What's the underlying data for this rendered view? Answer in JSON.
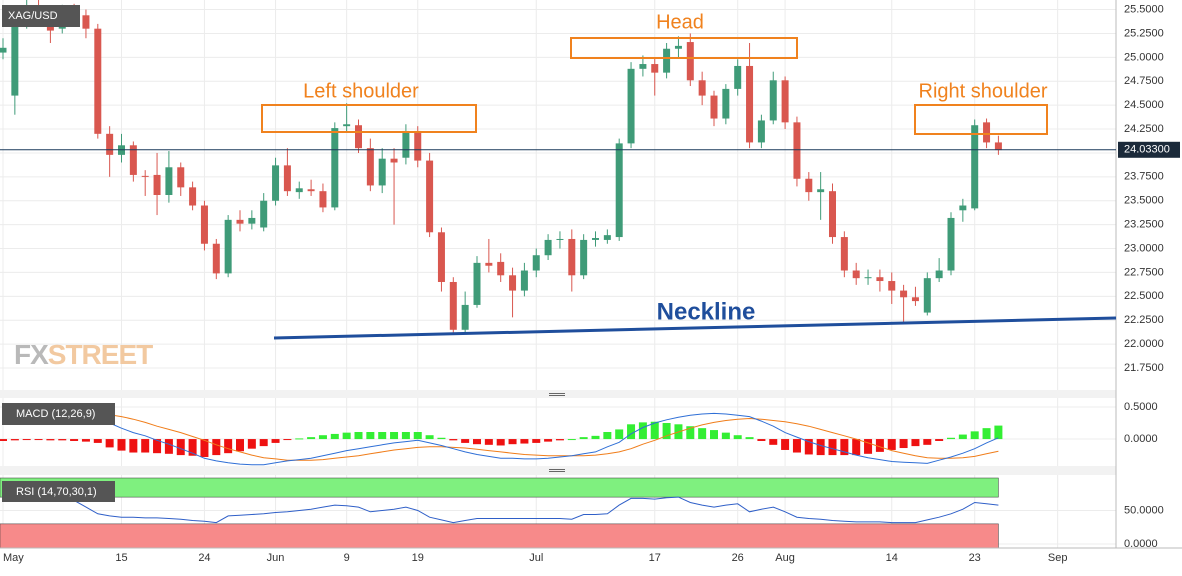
{
  "chart_data": [
    {
      "type": "candlestick",
      "symbol": "XAG/USD",
      "watermark": [
        "FX",
        "STREET"
      ],
      "annotations": [
        "Left shoulder",
        "Head",
        "Right shoulder",
        "Neckline"
      ],
      "categories": [
        "May",
        null,
        null,
        null,
        null,
        null,
        null,
        null,
        null,
        null,
        "15",
        null,
        null,
        null,
        null,
        null,
        null,
        "24",
        null,
        null,
        null,
        null,
        null,
        "Jun",
        null,
        null,
        null,
        null,
        null,
        "9",
        null,
        null,
        null,
        null,
        null,
        "19",
        null,
        null,
        null,
        null,
        null,
        null,
        null,
        null,
        null,
        "Jul",
        null,
        null,
        null,
        null,
        null,
        null,
        null,
        null,
        null,
        "17",
        null,
        null,
        null,
        null,
        null,
        null,
        "26",
        null,
        null,
        null,
        "Aug",
        null,
        null,
        null,
        null,
        null,
        null,
        null,
        null,
        "14",
        null,
        null,
        null,
        null,
        null,
        null,
        "23",
        null,
        null,
        null,
        null,
        null,
        null,
        "Sep"
      ],
      "open": [
        25.05,
        24.6,
        25.38,
        25.48,
        25.45,
        25.3,
        25.47,
        25.44,
        25.3,
        24.2,
        23.98,
        24.08,
        23.76,
        23.77,
        23.56,
        23.85,
        23.64,
        23.45,
        23.05,
        22.74,
        23.3,
        23.26,
        23.22,
        23.5,
        23.87,
        23.59,
        23.62,
        23.6,
        23.43,
        24.28,
        24.29,
        24.05,
        23.66,
        23.94,
        23.95,
        24.23,
        23.92,
        23.17,
        22.65,
        22.15,
        22.41,
        22.85,
        22.86,
        22.72,
        22.56,
        22.77,
        22.93,
        23.09,
        23.1,
        22.72,
        23.09,
        23.09,
        23.12,
        24.1,
        24.88,
        24.93,
        24.84,
        25.09,
        25.16,
        24.76,
        24.6,
        24.36,
        24.67,
        24.91,
        24.11,
        24.34,
        24.76,
        24.32,
        23.73,
        23.59,
        23.6,
        23.12,
        22.77,
        22.69,
        22.7,
        22.66,
        22.56,
        22.49,
        22.33,
        22.69,
        22.77,
        23.4,
        23.42,
        24.32,
        24.11,
        null,
        null,
        null,
        null,
        null
      ],
      "high": [
        25.2,
        25.45,
        25.6,
        25.62,
        25.5,
        25.55,
        25.56,
        25.5,
        25.35,
        24.28,
        24.2,
        24.12,
        23.82,
        24.0,
        24.02,
        23.9,
        23.7,
        23.5,
        23.1,
        23.35,
        23.4,
        23.4,
        23.58,
        23.95,
        24.05,
        23.7,
        23.72,
        23.68,
        24.32,
        24.52,
        24.35,
        24.15,
        24.05,
        24.05,
        24.3,
        24.28,
        24.0,
        23.22,
        22.7,
        22.55,
        22.92,
        23.1,
        22.95,
        22.8,
        22.85,
        23.0,
        23.15,
        23.18,
        23.2,
        23.15,
        23.18,
        23.2,
        24.15,
        24.95,
        25.02,
        25.0,
        25.15,
        25.22,
        25.25,
        24.85,
        24.65,
        24.72,
        24.98,
        25.15,
        24.4,
        24.85,
        24.8,
        24.38,
        23.8,
        23.8,
        23.68,
        23.18,
        22.85,
        22.78,
        22.78,
        22.75,
        22.62,
        22.6,
        22.75,
        22.9,
        23.38,
        23.52,
        24.35,
        24.36,
        24.18,
        null,
        null,
        null,
        null,
        null
      ],
      "low": [
        24.98,
        24.4,
        25.3,
        25.4,
        25.15,
        25.25,
        25.38,
        25.2,
        24.15,
        23.75,
        23.9,
        23.7,
        23.55,
        23.35,
        23.48,
        23.55,
        23.4,
        22.98,
        22.68,
        22.7,
        23.18,
        23.2,
        23.18,
        23.45,
        23.55,
        23.52,
        23.55,
        23.38,
        23.4,
        24.22,
        24.0,
        23.6,
        23.58,
        23.25,
        23.88,
        23.85,
        23.12,
        22.55,
        22.1,
        22.12,
        22.38,
        22.75,
        22.65,
        22.28,
        22.5,
        22.7,
        22.88,
        23.0,
        22.55,
        22.68,
        23.02,
        23.05,
        23.08,
        24.05,
        24.8,
        24.6,
        24.78,
        25.0,
        24.7,
        24.5,
        24.28,
        24.3,
        24.6,
        24.05,
        24.05,
        24.3,
        24.25,
        23.65,
        23.5,
        23.3,
        23.05,
        22.7,
        22.62,
        22.62,
        22.55,
        22.42,
        22.22,
        22.4,
        22.3,
        22.65,
        22.72,
        23.28,
        23.4,
        24.05,
        23.98,
        null,
        null,
        null,
        null,
        null
      ],
      "close": [
        25.1,
        25.4,
        25.5,
        25.45,
        25.28,
        25.48,
        25.44,
        25.3,
        24.2,
        23.98,
        24.08,
        23.77,
        23.75,
        23.56,
        23.85,
        23.64,
        23.45,
        23.05,
        22.74,
        23.3,
        23.26,
        23.32,
        23.5,
        23.87,
        23.6,
        23.63,
        23.6,
        23.43,
        24.26,
        24.3,
        24.05,
        23.66,
        23.94,
        23.9,
        24.23,
        23.92,
        23.17,
        22.65,
        22.15,
        22.41,
        22.85,
        22.82,
        22.72,
        22.56,
        22.77,
        22.93,
        23.09,
        23.1,
        22.72,
        23.09,
        23.11,
        23.14,
        24.1,
        24.88,
        24.93,
        24.84,
        25.09,
        25.12,
        24.76,
        24.6,
        24.36,
        24.67,
        24.91,
        24.11,
        24.34,
        24.76,
        24.32,
        23.73,
        23.59,
        23.62,
        23.12,
        22.77,
        22.69,
        22.7,
        22.66,
        22.56,
        22.49,
        22.45,
        22.69,
        22.77,
        23.32,
        23.45,
        24.29,
        24.11,
        24.03,
        null,
        null,
        null,
        null,
        null
      ],
      "up_color": "#3f9b78",
      "down_color": "#d9574f",
      "ylim": [
        21.52,
        25.6
      ],
      "yticks": [
        {
          "value": 25.5,
          "label": "25.5000"
        },
        {
          "value": 25.25,
          "label": "25.2500"
        },
        {
          "value": 25,
          "label": "25.0000"
        },
        {
          "value": 24.75,
          "label": "24.7500"
        },
        {
          "value": 24.5,
          "label": "24.5000"
        },
        {
          "value": 24.25,
          "label": "24.2500"
        },
        {
          "value": 24,
          "label": "24.0000"
        },
        {
          "value": 23.75,
          "label": "23.7500"
        },
        {
          "value": 23.5,
          "label": "23.5000"
        },
        {
          "value": 23.25,
          "label": "23.2500"
        },
        {
          "value": 23,
          "label": "23.0000"
        },
        {
          "value": 22.75,
          "label": "22.7500"
        },
        {
          "value": 22.5,
          "label": "22.5000"
        },
        {
          "value": 22.25,
          "label": "22.2500"
        },
        {
          "value": 22,
          "label": "22.0000"
        },
        {
          "value": 21.75,
          "label": "21.7500"
        }
      ],
      "last_price": {
        "value": 24.033,
        "label": "24.03300"
      },
      "grid": true
    },
    {
      "type": "macd",
      "label": "MACD (12,26,9)",
      "macd": [
        0.42,
        0.43,
        0.44,
        0.44,
        0.43,
        0.42,
        0.4,
        0.38,
        0.35,
        0.25,
        0.17,
        0.1,
        0.05,
        -0.02,
        -0.08,
        -0.15,
        -0.22,
        -0.3,
        -0.34,
        -0.37,
        -0.39,
        -0.4,
        -0.4,
        -0.37,
        -0.34,
        -0.32,
        -0.3,
        -0.26,
        -0.22,
        -0.18,
        -0.15,
        -0.12,
        -0.09,
        -0.06,
        -0.04,
        -0.02,
        -0.06,
        -0.1,
        -0.15,
        -0.2,
        -0.24,
        -0.27,
        -0.3,
        -0.3,
        -0.31,
        -0.31,
        -0.3,
        -0.28,
        -0.26,
        -0.23,
        -0.2,
        -0.12,
        -0.05,
        0.08,
        0.18,
        0.25,
        0.3,
        0.34,
        0.37,
        0.39,
        0.4,
        0.39,
        0.37,
        0.35,
        0.28,
        0.2,
        0.1,
        0.03,
        -0.04,
        -0.1,
        -0.15,
        -0.2,
        -0.25,
        -0.29,
        -0.32,
        -0.35,
        -0.36,
        -0.37,
        -0.38,
        -0.33,
        -0.28,
        -0.22,
        -0.15,
        -0.06,
        0.02,
        null,
        null,
        null,
        null,
        null
      ],
      "signal": [
        0.45,
        0.45,
        0.45,
        0.45,
        0.45,
        0.44,
        0.43,
        0.42,
        0.41,
        0.38,
        0.35,
        0.31,
        0.26,
        0.2,
        0.15,
        0.1,
        0.04,
        -0.02,
        -0.09,
        -0.15,
        -0.2,
        -0.25,
        -0.29,
        -0.31,
        -0.33,
        -0.33,
        -0.33,
        -0.32,
        -0.3,
        -0.28,
        -0.26,
        -0.23,
        -0.2,
        -0.17,
        -0.15,
        -0.13,
        -0.12,
        -0.12,
        -0.13,
        -0.14,
        -0.16,
        -0.18,
        -0.2,
        -0.22,
        -0.24,
        -0.25,
        -0.26,
        -0.26,
        -0.26,
        -0.26,
        -0.25,
        -0.23,
        -0.2,
        -0.15,
        -0.08,
        -0.02,
        0.05,
        0.11,
        0.17,
        0.22,
        0.26,
        0.29,
        0.31,
        0.32,
        0.31,
        0.29,
        0.27,
        0.24,
        0.2,
        0.15,
        0.1,
        0.05,
        0,
        -0.06,
        -0.12,
        -0.18,
        -0.22,
        -0.26,
        -0.29,
        -0.3,
        -0.3,
        -0.29,
        -0.27,
        -0.23,
        -0.19,
        null,
        null,
        null,
        null,
        null
      ],
      "histogram": [
        -0.03,
        -0.02,
        -0.01,
        -0.01,
        -0.02,
        -0.02,
        -0.03,
        -0.04,
        -0.06,
        -0.13,
        -0.18,
        -0.21,
        -0.21,
        -0.22,
        -0.23,
        -0.25,
        -0.26,
        -0.28,
        -0.25,
        -0.22,
        -0.19,
        -0.15,
        -0.11,
        -0.06,
        -0.01,
        0.01,
        0.03,
        0.06,
        0.08,
        0.1,
        0.11,
        0.11,
        0.11,
        0.11,
        0.11,
        0.11,
        0.06,
        0.02,
        -0.02,
        -0.06,
        -0.08,
        -0.09,
        -0.1,
        -0.08,
        -0.07,
        -0.06,
        -0.04,
        -0.02,
        0,
        0.03,
        0.05,
        0.11,
        0.15,
        0.23,
        0.26,
        0.27,
        0.25,
        0.23,
        0.2,
        0.17,
        0.14,
        0.1,
        0.06,
        0.03,
        -0.03,
        -0.09,
        -0.17,
        -0.21,
        -0.24,
        -0.25,
        -0.25,
        -0.25,
        -0.25,
        -0.23,
        -0.2,
        -0.17,
        -0.14,
        -0.11,
        -0.09,
        -0.03,
        0.02,
        0.07,
        0.12,
        0.17,
        0.21,
        null,
        null,
        null,
        null,
        null
      ],
      "macd_color": "#2f6fd6",
      "signal_color": "#f07d1a",
      "up_color": "#33ee33",
      "down_color": "#ee1111",
      "ylim": [
        -0.42,
        0.64
      ],
      "yticks": [
        {
          "value": 0.5,
          "label": "0.5000"
        },
        {
          "value": 0,
          "label": "0.0000"
        }
      ]
    },
    {
      "type": "rsi",
      "label": "RSI (14,70,30,1)",
      "values": [
        70,
        71,
        71,
        72,
        70,
        68,
        65,
        55,
        45,
        42,
        40,
        40,
        39,
        39,
        38,
        37,
        35,
        34,
        32,
        42,
        43,
        44,
        45,
        47,
        48,
        50,
        52,
        55,
        58,
        57,
        55,
        48,
        50,
        52,
        55,
        50,
        40,
        36,
        32,
        35,
        38,
        38,
        38,
        38,
        38,
        38,
        38,
        38,
        37,
        44,
        44,
        45,
        58,
        68,
        68,
        67,
        69,
        70,
        62,
        58,
        55,
        58,
        60,
        48,
        52,
        55,
        48,
        40,
        38,
        37,
        35,
        34,
        33,
        33,
        33,
        32,
        32,
        32,
        36,
        40,
        45,
        52,
        62,
        60,
        58,
        null,
        null,
        null,
        null,
        null
      ],
      "color": "#2f5fc8",
      "overbought": 70,
      "oversold": 30,
      "overbought_color": "#7ff07f",
      "oversold_color": "#f78a8a",
      "ylim": [
        -6,
        103
      ],
      "yticks": [
        {
          "value": 50,
          "label": "50.0000"
        },
        {
          "value": 0,
          "label": "0.0000"
        }
      ]
    }
  ]
}
